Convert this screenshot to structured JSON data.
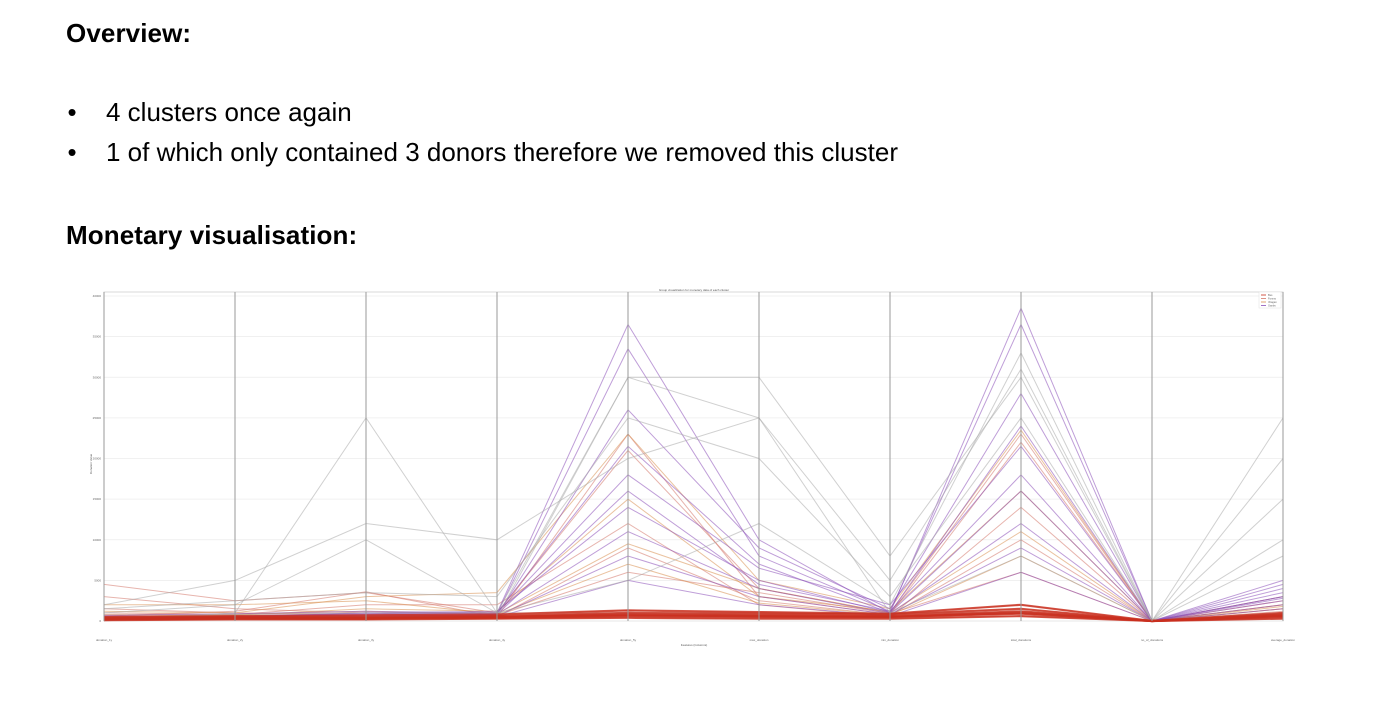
{
  "overview": {
    "heading": "Overview:",
    "bullets": [
      "4 clusters once again",
      "1 of which only contained 3 donors therefore we removed this cluster"
    ]
  },
  "monetary": {
    "heading": "Monetary visualisation:"
  },
  "chart_data": {
    "type": "line",
    "subtype": "parallel-coordinates",
    "title": "Group visualization for monetary data of each cluster",
    "xlabel": "Features (Columns)",
    "ylabel": "Donation Value",
    "ylim": [
      0,
      40000
    ],
    "yticks": [
      0,
      5000,
      10000,
      15000,
      20000,
      25000,
      30000,
      35000,
      40000
    ],
    "x": [
      "donation_1y",
      "donation_2y",
      "donation_3y",
      "donation_4y",
      "donation_5y",
      "max_donation",
      "min_donation",
      "total_donations",
      "no_of_donations",
      "average_donation"
    ],
    "legend": {
      "placement": "top-right",
      "entries": [
        "Bus",
        "Fonmo",
        "Vitagan",
        "Ganbs"
      ]
    },
    "grid": true,
    "series": [
      {
        "color": "#c9301f",
        "lines": [
          [
            200,
            300,
            300,
            400,
            600,
            500,
            500,
            900,
            0,
            500
          ],
          [
            300,
            400,
            400,
            500,
            800,
            700,
            600,
            1200,
            0,
            600
          ],
          [
            400,
            500,
            500,
            600,
            1000,
            900,
            800,
            1500,
            0,
            800
          ],
          [
            100,
            200,
            200,
            300,
            400,
            300,
            300,
            600,
            0,
            300
          ],
          [
            500,
            600,
            700,
            800,
            1300,
            1100,
            900,
            2000,
            0,
            1000
          ],
          [
            250,
            350,
            300,
            500,
            700,
            600,
            500,
            1000,
            0,
            700
          ]
        ]
      },
      {
        "color": "#d4776a",
        "lines": [
          [
            1000,
            800,
            2000,
            2000,
            12000,
            2000,
            500,
            14000,
            0,
            2000
          ],
          [
            4500,
            2500,
            3500,
            1000,
            21000,
            4000,
            1000,
            23000,
            0,
            2500
          ],
          [
            3000,
            1500,
            1000,
            500,
            23000,
            3000,
            800,
            22000,
            0,
            1500
          ],
          [
            600,
            1200,
            3600,
            500,
            9000,
            2500,
            700,
            10000,
            0,
            1200
          ],
          [
            1500,
            1000,
            800,
            700,
            6000,
            3500,
            900,
            6000,
            0,
            900
          ]
        ]
      },
      {
        "color": "#d89050",
        "lines": [
          [
            1200,
            1000,
            3000,
            3500,
            23000,
            5000,
            1500,
            23500,
            0,
            3000
          ],
          [
            800,
            700,
            1500,
            1200,
            15000,
            3000,
            1200,
            16000,
            0,
            2000
          ],
          [
            2000,
            2000,
            2500,
            900,
            9500,
            4000,
            1000,
            11000,
            0,
            1800
          ],
          [
            500,
            800,
            1200,
            800,
            7000,
            2200,
            700,
            8000,
            0,
            1500
          ]
        ]
      },
      {
        "color": "#8b4fb8",
        "lines": [
          [
            500,
            500,
            1000,
            1000,
            36500,
            10000,
            1000,
            38500,
            0,
            5000
          ],
          [
            600,
            500,
            900,
            900,
            33500,
            8000,
            1200,
            36500,
            0,
            4500
          ],
          [
            400,
            300,
            600,
            700,
            26000,
            9000,
            1500,
            28000,
            0,
            3500
          ],
          [
            300,
            400,
            800,
            1000,
            18000,
            6500,
            2000,
            21500,
            0,
            4000
          ],
          [
            500,
            600,
            1000,
            1200,
            14000,
            5000,
            1000,
            16000,
            0,
            3000
          ],
          [
            200,
            300,
            500,
            800,
            11000,
            4000,
            900,
            12000,
            0,
            2500
          ],
          [
            700,
            900,
            1200,
            1000,
            21500,
            7000,
            1000,
            24000,
            0,
            3000
          ],
          [
            300,
            400,
            500,
            600,
            8000,
            3000,
            800,
            9000,
            0,
            2000
          ],
          [
            400,
            500,
            700,
            800,
            16000,
            4500,
            1200,
            18000,
            0,
            2800
          ],
          [
            200,
            300,
            400,
            500,
            5000,
            2000,
            600,
            6000,
            0,
            1500
          ]
        ]
      },
      {
        "color": "#aaaaaa",
        "lines": [
          [
            0,
            1000,
            25000,
            1000,
            1000,
            1000,
            1000,
            1000,
            0,
            1000
          ],
          [
            2000,
            5000,
            12000,
            10000,
            20000,
            25000,
            5000,
            31000,
            0,
            25000
          ],
          [
            1000,
            2000,
            10000,
            1000,
            5000,
            12000,
            2000,
            33000,
            0,
            15000
          ],
          [
            500,
            500,
            500,
            500,
            30000,
            30000,
            8000,
            30000,
            0,
            20000
          ],
          [
            500,
            800,
            1000,
            1000,
            30000,
            25000,
            1000,
            8000,
            0,
            8000
          ],
          [
            1500,
            2500,
            3500,
            3000,
            25000,
            20000,
            3000,
            25000,
            0,
            10000
          ]
        ]
      }
    ]
  }
}
